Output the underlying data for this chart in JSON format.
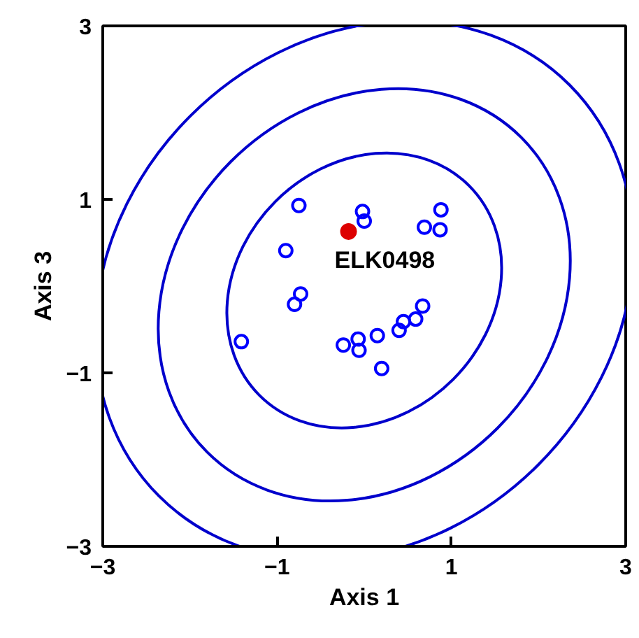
{
  "chart_data": {
    "type": "scatter",
    "xlabel": "Axis 1",
    "ylabel": "Axis 3",
    "xlim": [
      -3,
      3
    ],
    "ylim": [
      -3,
      3
    ],
    "xticks": [
      -3,
      -1,
      1,
      3
    ],
    "yticks": [
      -3,
      -1,
      1,
      3
    ],
    "grid": false,
    "marker": "circle",
    "series": [
      {
        "color": "#0000ff",
        "x": [
          -0.75,
          -0.02,
          0.0,
          0.88,
          0.69,
          0.87,
          -0.9,
          -0.73,
          -0.8,
          0.67,
          0.59,
          0.45,
          0.4,
          0.15,
          -0.07,
          -0.24,
          -0.06,
          0.2,
          -1.41
        ],
        "values": [
          0.93,
          0.86,
          0.75,
          0.88,
          0.68,
          0.65,
          0.41,
          -0.09,
          -0.21,
          -0.23,
          -0.38,
          -0.41,
          -0.51,
          -0.57,
          -0.61,
          -0.68,
          -0.74,
          -0.95,
          -0.64
        ]
      },
      {
        "color": "#dd0000",
        "x": [
          -0.18
        ],
        "values": [
          0.63
        ]
      }
    ],
    "annotations": [
      {
        "text": "ELK0498",
        "x": -0.18,
        "y": 0.63
      }
    ]
  }
}
